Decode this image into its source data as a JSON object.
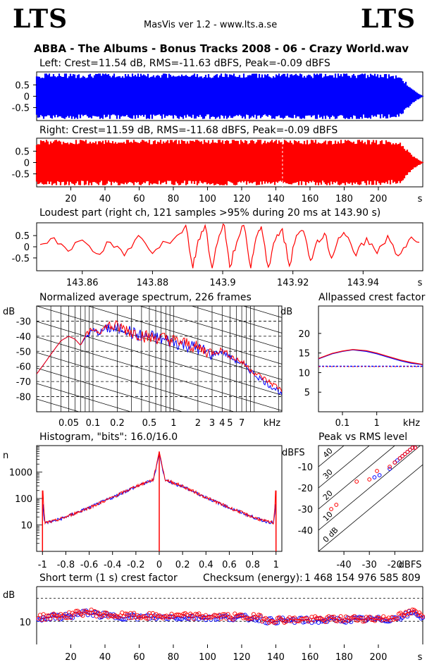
{
  "header": {
    "logo_left": "LTS",
    "logo_right": "LTS",
    "app_title": "MasVis ver 1.2 - www.lts.a.se",
    "file_title": "ABBA - The Albums - Bonus Tracks 2008 - 06 - Crazy World.wav"
  },
  "colors": {
    "left": "#0000ff",
    "right": "#ff0000",
    "background": "#ffffff",
    "grid": "#000000"
  },
  "chart_data": [
    {
      "id": "left_wave",
      "type": "area",
      "title": "Left: Crest=11.54 dB, RMS=-11.63 dBFS, Peak=-0.09 dBFS",
      "series": [
        {
          "name": "Left",
          "color": "#0000ff"
        }
      ],
      "y_ticks": [
        "0.5",
        "0",
        "-0.5"
      ],
      "ylim": [
        -1,
        1
      ],
      "xlim": [
        0,
        226
      ],
      "envelope_x": [
        0,
        5,
        20,
        40,
        60,
        80,
        100,
        110,
        120,
        125,
        130,
        140,
        143.9,
        150,
        170,
        190,
        205,
        213,
        220,
        226
      ],
      "envelope_peak": [
        0.95,
        0.99,
        0.99,
        0.99,
        0.99,
        0.99,
        0.99,
        0.99,
        0.99,
        0.98,
        0.99,
        0.99,
        0.99,
        0.99,
        0.99,
        0.99,
        0.97,
        0.9,
        0.3,
        0.02
      ]
    },
    {
      "id": "right_wave",
      "type": "area",
      "title": "Right: Crest=11.59 dB, RMS=-11.68 dBFS, Peak=-0.09 dBFS",
      "series": [
        {
          "name": "Right",
          "color": "#ff0000"
        }
      ],
      "y_ticks": [
        "0.5",
        "0",
        "-0.5"
      ],
      "x_ticks": [
        20,
        40,
        60,
        80,
        100,
        120,
        140,
        160,
        180,
        200
      ],
      "x_unit": "s",
      "ylim": [
        -1,
        1
      ],
      "xlim": [
        0,
        226
      ],
      "marker_x": 143.9,
      "envelope_x": [
        0,
        5,
        20,
        40,
        60,
        80,
        100,
        110,
        120,
        125,
        130,
        140,
        143.9,
        150,
        170,
        190,
        205,
        213,
        220,
        226
      ],
      "envelope_peak": [
        0.95,
        0.99,
        0.99,
        0.99,
        0.99,
        0.99,
        0.99,
        0.99,
        0.99,
        0.98,
        0.99,
        0.99,
        0.99,
        0.99,
        0.99,
        0.99,
        0.97,
        0.9,
        0.3,
        0.02
      ]
    },
    {
      "id": "loudest_part",
      "type": "line",
      "title": "Loudest part (right ch, 121 samples >95% during 20 ms at 143.90 s)",
      "y_ticks": [
        "0.5",
        "0",
        "-0.5"
      ],
      "x_ticks": [
        "143.86",
        "143.88",
        "143.9",
        "143.92",
        "143.94"
      ],
      "x_unit": "s",
      "xlim": [
        143.847,
        143.957
      ],
      "ylim": [
        -1,
        1
      ],
      "x": [
        143.848,
        143.852,
        143.856,
        143.86,
        143.864,
        143.868,
        143.872,
        143.876,
        143.88,
        143.884,
        143.888,
        143.8895,
        143.8915,
        143.893,
        143.895,
        143.897,
        143.899,
        143.9005,
        143.902,
        143.904,
        143.906,
        143.908,
        143.9095,
        143.911,
        143.913,
        143.915,
        143.917,
        143.919,
        143.921,
        143.923,
        143.925,
        143.927,
        143.929,
        143.931,
        143.933,
        143.935,
        143.938,
        143.941,
        143.944,
        143.947,
        143.95,
        143.953,
        143.956
      ],
      "y": [
        0.1,
        0.4,
        -0.2,
        0.3,
        -0.3,
        0.2,
        -0.4,
        0.5,
        -0.3,
        0.2,
        0.6,
        0.95,
        -0.95,
        0.3,
        0.95,
        -0.95,
        0.5,
        0.95,
        -0.9,
        0.2,
        0.95,
        -0.95,
        0.4,
        0.9,
        -0.9,
        0.3,
        0.8,
        -0.85,
        0.5,
        0.7,
        -0.6,
        0.3,
        0.6,
        -0.5,
        0.4,
        0.5,
        -0.4,
        0.4,
        -0.3,
        0.5,
        -0.4,
        0.3,
        0.2
      ]
    },
    {
      "id": "spectrum",
      "type": "line",
      "title": "Normalized average spectrum, 226 frames",
      "ylabel": "dB",
      "y_ticks": [
        -30,
        -40,
        -50,
        -60,
        -70,
        -80
      ],
      "x_tick_labels": [
        "0.05",
        "0.1",
        "0.2",
        "0.5",
        "1",
        "2",
        "3",
        "4",
        "5",
        "7"
      ],
      "x_tick_values": [
        0.05,
        0.1,
        0.2,
        0.5,
        1,
        2,
        3,
        4,
        5,
        7
      ],
      "x_unit": "kHz",
      "xscale": "log",
      "xlim": [
        0.02,
        22
      ],
      "ylim": [
        -90,
        -20
      ],
      "x": [
        0.02,
        0.025,
        0.03,
        0.04,
        0.05,
        0.06,
        0.07,
        0.08,
        0.1,
        0.12,
        0.15,
        0.2,
        0.25,
        0.3,
        0.4,
        0.5,
        0.7,
        1,
        1.5,
        2,
        3,
        4,
        5,
        7,
        10,
        15,
        20,
        22
      ],
      "series": [
        {
          "name": "Left",
          "color": "#0000ff",
          "values": [
            -65,
            -58,
            -52,
            -43,
            -40,
            -42,
            -46,
            -41,
            -36,
            -38,
            -34,
            -36,
            -34,
            -38,
            -40,
            -40,
            -42,
            -44,
            -46,
            -48,
            -52,
            -50,
            -54,
            -58,
            -65,
            -72,
            -76,
            -80
          ]
        },
        {
          "name": "Right",
          "color": "#ff0000",
          "values": [
            -65,
            -58,
            -52,
            -43,
            -40,
            -42,
            -46,
            -40,
            -35,
            -37,
            -33,
            -34,
            -35,
            -37,
            -39,
            -41,
            -41,
            -43,
            -45,
            -48,
            -51,
            -49,
            -53,
            -57,
            -64,
            -70,
            -74,
            -76
          ]
        }
      ]
    },
    {
      "id": "allpassed_crest",
      "type": "line",
      "title": "Allpassed crest factor",
      "ylabel": "dB",
      "y_ticks": [
        20,
        15,
        10,
        5
      ],
      "x_tick_labels": [
        "0.1",
        "1",
        "kHz"
      ],
      "xscale": "log",
      "xlim": [
        0.02,
        22
      ],
      "ylim": [
        0,
        27
      ],
      "x": [
        0.02,
        0.05,
        0.1,
        0.2,
        0.5,
        1,
        2,
        5,
        10,
        22
      ],
      "series": [
        {
          "name": "Left",
          "color": "#0000ff",
          "values": [
            13.5,
            14.8,
            15.4,
            15.8,
            15.4,
            14.8,
            14.0,
            13.0,
            12.4,
            12.0
          ]
        },
        {
          "name": "Right",
          "color": "#ff0000",
          "values": [
            13.6,
            14.9,
            15.5,
            15.9,
            15.6,
            15.0,
            14.2,
            13.2,
            12.6,
            12.1
          ]
        }
      ],
      "reference_level": 11.6
    },
    {
      "id": "histogram",
      "type": "line",
      "title": "Histogram, \"bits\": 16.0/16.0",
      "ylabel": "n",
      "y_ticks": [
        "1000",
        "100",
        "10"
      ],
      "yscale": "log",
      "ylim": [
        1,
        10000
      ],
      "x_ticks": [
        "-1",
        "-0.8",
        "-0.6",
        "-0.4",
        "-0.2",
        "0",
        "0.2",
        "0.4",
        "0.6",
        "0.8",
        "1"
      ],
      "xlim": [
        -1.05,
        1.05
      ],
      "x": [
        -1,
        -0.98,
        -0.9,
        -0.8,
        -0.6,
        -0.4,
        -0.2,
        -0.05,
        0,
        0.05,
        0.2,
        0.4,
        0.6,
        0.8,
        0.9,
        0.98,
        1
      ],
      "series": [
        {
          "name": "Left",
          "color": "#0000ff",
          "values": [
            60,
            12,
            14,
            20,
            45,
            110,
            280,
            500,
            5000,
            500,
            280,
            110,
            45,
            20,
            14,
            12,
            60
          ]
        },
        {
          "name": "Right",
          "color": "#ff0000",
          "values": [
            200,
            12,
            14,
            20,
            45,
            110,
            290,
            520,
            6000,
            520,
            290,
            110,
            45,
            20,
            14,
            12,
            200
          ]
        }
      ]
    },
    {
      "id": "peak_vs_rms",
      "type": "scatter",
      "title": "Peak vs RMS level",
      "ylabel": "dBFS",
      "xlabel": "dBFS",
      "y_ticks": [
        -10,
        -20,
        -30,
        -40
      ],
      "x_ticks": [
        -40,
        -30,
        -20
      ],
      "xlim": [
        -50,
        -9
      ],
      "ylim": [
        -50,
        0
      ],
      "diagonal_labels": [
        "40",
        "30",
        "20",
        "10",
        "0 dB"
      ],
      "series": [
        {
          "name": "Left",
          "color": "#0000ff",
          "x": [
            -28,
            -26,
            -22,
            -20,
            -19,
            -18,
            -17,
            -16,
            -15,
            -14,
            -13,
            -12
          ],
          "y": [
            -15,
            -14,
            -11,
            -8,
            -7,
            -6,
            -5,
            -4,
            -3,
            -2,
            -1,
            -1
          ]
        },
        {
          "name": "Right",
          "color": "#ff0000",
          "x": [
            -45,
            -43,
            -35,
            -30,
            -27,
            -22,
            -20,
            -18,
            -17,
            -16,
            -15,
            -14,
            -13,
            -12
          ],
          "y": [
            -30,
            -28,
            -17,
            -16,
            -12,
            -10,
            -8,
            -6,
            -5,
            -4,
            -3,
            -2,
            -1,
            -1
          ]
        }
      ]
    },
    {
      "id": "short_term_crest",
      "type": "scatter",
      "title": "Short term (1 s) crest factor",
      "checksum_label": "Checksum (energy):",
      "checksum_value": "1 468 154 976 585 809",
      "ylabel": "dB",
      "y_ticks": [
        10
      ],
      "x_ticks": [
        20,
        40,
        60,
        80,
        100,
        120,
        140,
        160,
        180,
        200
      ],
      "x_unit": "s",
      "xlim": [
        0,
        226
      ],
      "ylim": [
        0,
        25
      ],
      "reference_lines": [
        20,
        10
      ],
      "series": [
        {
          "name": "Left",
          "color": "#0000ff",
          "pattern_base": 11.5,
          "pattern_amp": 1.2
        },
        {
          "name": "Right",
          "color": "#ff0000",
          "pattern_base": 11.7,
          "pattern_amp": 1.3
        }
      ],
      "envelope_x": [
        0,
        10,
        20,
        30,
        40,
        60,
        80,
        100,
        120,
        130,
        135,
        150,
        170,
        190,
        205,
        215,
        220,
        226
      ],
      "envelope_y": [
        11.5,
        12,
        12.5,
        14,
        12.5,
        12,
        12,
        12,
        11.8,
        11.5,
        10.5,
        10.5,
        10.7,
        11,
        11,
        12.5,
        14,
        12
      ]
    }
  ]
}
